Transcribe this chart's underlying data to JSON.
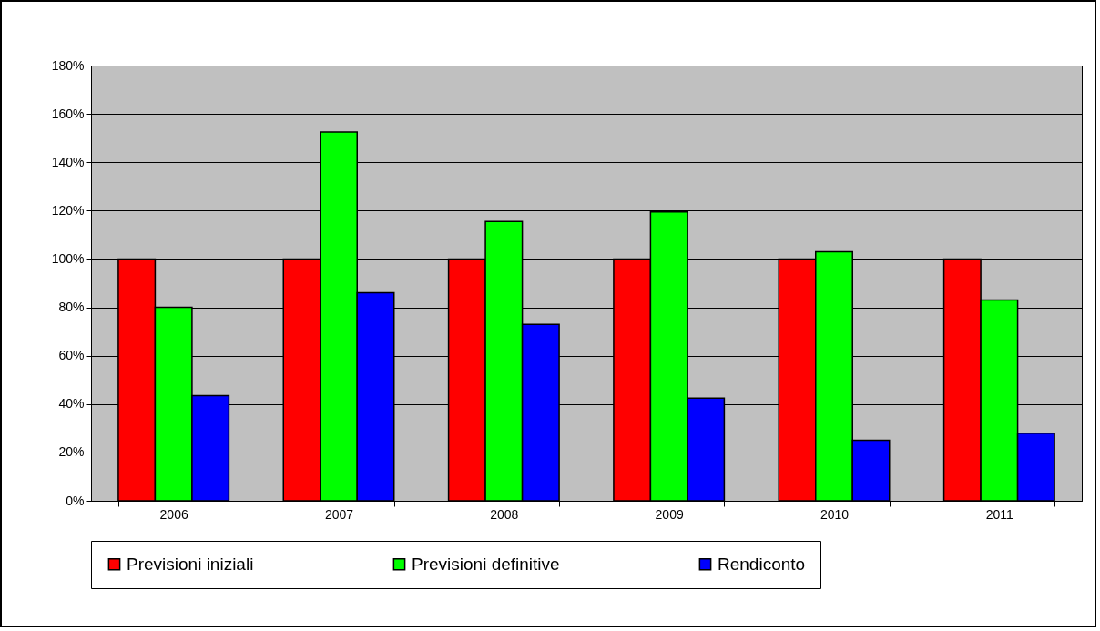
{
  "chart_data": {
    "type": "bar",
    "categories": [
      "2006",
      "2007",
      "2008",
      "2009",
      "2010",
      "2011"
    ],
    "series": [
      {
        "name": "Previsioni iniziali",
        "color": "#ff0000",
        "values": [
          100,
          100,
          100,
          100,
          100,
          100
        ]
      },
      {
        "name": "Previsioni definitive",
        "color": "#00ff00",
        "values": [
          80,
          152.5,
          115.5,
          119.5,
          103,
          83
        ]
      },
      {
        "name": "Rendiconto",
        "color": "#0000ff",
        "values": [
          43.5,
          86,
          73,
          42.5,
          25,
          28
        ]
      }
    ],
    "ylim": [
      0,
      180
    ],
    "yticks": [
      {
        "value": 0,
        "label": "0%"
      },
      {
        "value": 20,
        "label": "20%"
      },
      {
        "value": 40,
        "label": "40%"
      },
      {
        "value": 60,
        "label": "60%"
      },
      {
        "value": 80,
        "label": "80%"
      },
      {
        "value": 100,
        "label": "100%"
      },
      {
        "value": 120,
        "label": "120%"
      },
      {
        "value": 140,
        "label": "140%"
      },
      {
        "value": 160,
        "label": "160%"
      },
      {
        "value": 180,
        "label": "180%"
      }
    ],
    "grid": "y",
    "legend": "bottom"
  }
}
